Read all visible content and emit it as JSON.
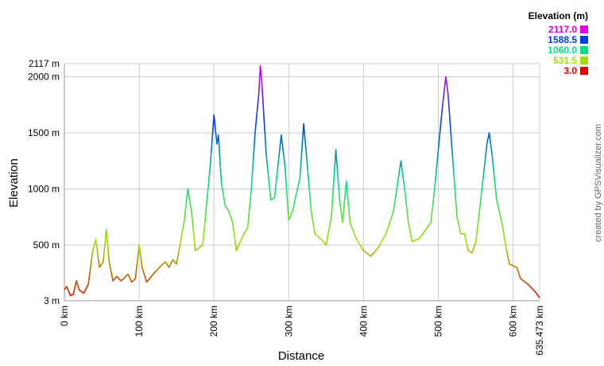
{
  "chart_data": {
    "type": "line",
    "x_label": "Distance",
    "y_label": "Elevation",
    "legend_title": "Elevation (m)",
    "credit": "created by GPSVisualizer.com",
    "grid": true,
    "xlim": [
      0,
      635.473
    ],
    "ylim": [
      3,
      2117
    ],
    "xticks": [
      {
        "value": 0,
        "label": "0 km"
      },
      {
        "value": 100,
        "label": "100 km"
      },
      {
        "value": 200,
        "label": "200 km"
      },
      {
        "value": 300,
        "label": "300 km"
      },
      {
        "value": 400,
        "label": "400 km"
      },
      {
        "value": 500,
        "label": "500 km"
      },
      {
        "value": 600,
        "label": "600 km"
      },
      {
        "value": 635.473,
        "label": "635.473 km"
      }
    ],
    "yticks": [
      {
        "value": 3,
        "label": "3 m"
      },
      {
        "value": 500,
        "label": "500 m"
      },
      {
        "value": 1000,
        "label": "1000 m"
      },
      {
        "value": 1500,
        "label": "1500 m"
      },
      {
        "value": 2000,
        "label": "2000 m"
      },
      {
        "value": 2117,
        "label": "2117 m"
      }
    ],
    "color_scale": [
      {
        "value": 2117.0,
        "label": "2117.0",
        "color": "#e000e0"
      },
      {
        "value": 1588.5,
        "label": "1588.5",
        "color": "#0040e0"
      },
      {
        "value": 1060.0,
        "label": "1060.0",
        "color": "#00e080"
      },
      {
        "value": 531.5,
        "label": "531.5",
        "color": "#a0e000"
      },
      {
        "value": 3.0,
        "label": "3.0",
        "color": "#e00000"
      }
    ],
    "x": [
      0,
      3,
      8,
      12,
      16,
      20,
      26,
      32,
      38,
      42,
      47,
      52,
      56,
      60,
      65,
      70,
      76,
      85,
      90,
      95,
      100,
      104,
      110,
      120,
      130,
      135,
      140,
      145,
      150,
      160,
      165,
      170,
      175,
      185,
      195,
      200,
      204,
      206,
      210,
      215,
      220,
      225,
      230,
      240,
      245,
      250,
      255,
      260,
      262,
      264,
      270,
      276,
      281,
      290,
      295,
      300,
      305,
      315,
      320,
      325,
      330,
      335,
      345,
      350,
      357,
      363,
      368,
      372,
      377,
      382,
      390,
      400,
      410,
      420,
      430,
      440,
      450,
      455,
      460,
      465,
      475,
      490,
      495,
      500,
      505,
      510,
      513,
      520,
      525,
      530,
      535,
      540,
      545,
      550,
      555,
      560,
      565,
      568,
      572,
      578,
      585,
      590,
      595,
      605,
      610,
      620,
      630,
      635.473
    ],
    "values": [
      100,
      130,
      50,
      60,
      180,
      100,
      70,
      150,
      450,
      550,
      300,
      350,
      640,
      350,
      180,
      220,
      180,
      240,
      170,
      200,
      500,
      300,
      170,
      250,
      320,
      350,
      300,
      370,
      330,
      700,
      1000,
      800,
      450,
      500,
      1200,
      1660,
      1400,
      1480,
      1050,
      850,
      800,
      700,
      450,
      600,
      650,
      1000,
      1500,
      1850,
      2100,
      1950,
      1300,
      900,
      920,
      1480,
      1200,
      720,
      800,
      1100,
      1580,
      1200,
      800,
      600,
      540,
      500,
      750,
      1350,
      900,
      700,
      1070,
      700,
      560,
      450,
      400,
      480,
      600,
      800,
      1250,
      1000,
      700,
      530,
      560,
      700,
      1000,
      1350,
      1700,
      2000,
      1850,
      1200,
      750,
      600,
      600,
      450,
      430,
      520,
      800,
      1100,
      1400,
      1500,
      1300,
      900,
      700,
      500,
      330,
      300,
      200,
      150,
      80,
      30
    ]
  }
}
